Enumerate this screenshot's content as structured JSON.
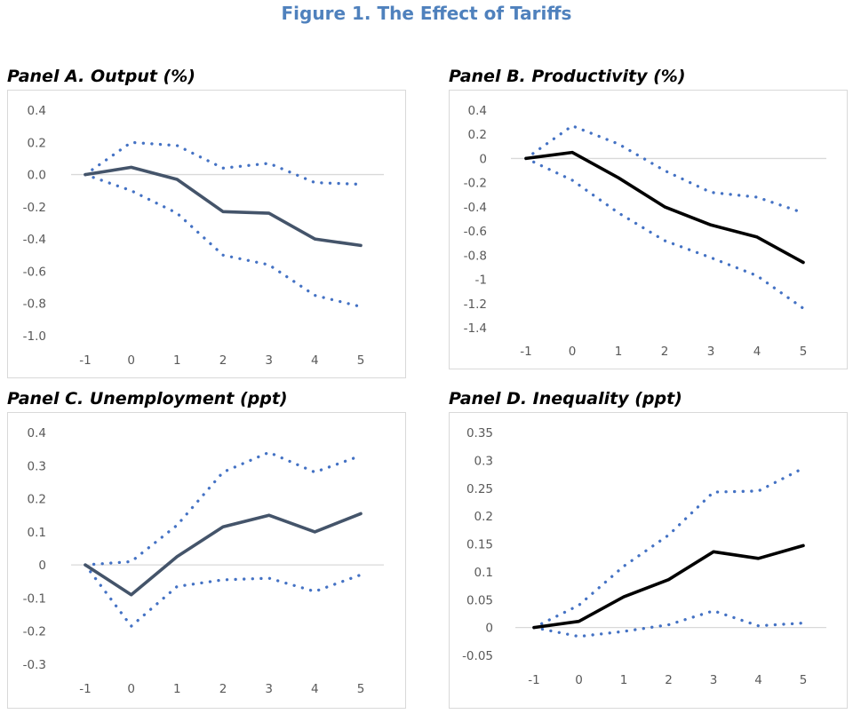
{
  "title": "Figure 1. The Effect of Tariffs",
  "colors": {
    "band": "#4472c4",
    "zero_line": "#d9d9d9",
    "box": "#d9d9d9"
  },
  "chart_data": [
    {
      "type": "line",
      "title": "Panel A. Output (%)",
      "x": [
        -1,
        0,
        1,
        2,
        3,
        4,
        5
      ],
      "x_tick_labels": [
        "-1",
        "0",
        "1",
        "2",
        "3",
        "4",
        "5"
      ],
      "ylim": [
        -1.0,
        0.4
      ],
      "y_ticks": [
        0.4,
        0.2,
        0.0,
        -0.2,
        -0.4,
        -0.6,
        -0.8,
        -1.0
      ],
      "y_tick_labels": [
        "0.4",
        "0.2",
        "0.0",
        "-0.2",
        "-0.4",
        "-0.6",
        "-0.8",
        "-1.0"
      ],
      "series": [
        {
          "name": "estimate",
          "style": "solid",
          "color": "#44546a",
          "values": [
            0,
            0.045,
            -0.03,
            -0.23,
            -0.24,
            -0.4,
            -0.44
          ]
        },
        {
          "name": "upper bound",
          "style": "dotted",
          "color": "#4472c4",
          "values": [
            0,
            0.2,
            0.18,
            0.04,
            0.07,
            -0.05,
            -0.06
          ]
        },
        {
          "name": "lower bound",
          "style": "dotted",
          "color": "#4472c4",
          "values": [
            0,
            -0.1,
            -0.24,
            -0.5,
            -0.56,
            -0.75,
            -0.82
          ]
        }
      ]
    },
    {
      "type": "line",
      "title": "Panel B. Productivity (%)",
      "x": [
        -1,
        0,
        1,
        2,
        3,
        4,
        5
      ],
      "x_tick_labels": [
        "-1",
        "0",
        "1",
        "2",
        "3",
        "4",
        "5"
      ],
      "ylim": [
        -1.4,
        0.4
      ],
      "y_ticks": [
        0.4,
        0.2,
        0,
        -0.2,
        -0.4,
        -0.6,
        -0.8,
        -1.0,
        -1.2,
        -1.4
      ],
      "y_tick_labels": [
        "0.4",
        "0.2",
        "0",
        "-0.2",
        "-0.4",
        "-0.6",
        "-0.8",
        "-1",
        "-1.2",
        "-1.4"
      ],
      "series": [
        {
          "name": "estimate",
          "style": "solid",
          "color": "#000000",
          "values": [
            0,
            0.05,
            -0.16,
            -0.4,
            -0.55,
            -0.65,
            -0.86
          ]
        },
        {
          "name": "upper bound",
          "style": "dotted",
          "color": "#4472c4",
          "values": [
            0,
            0.27,
            0.12,
            -0.1,
            -0.28,
            -0.32,
            -0.45
          ]
        },
        {
          "name": "lower bound",
          "style": "dotted",
          "color": "#4472c4",
          "values": [
            0,
            -0.18,
            -0.45,
            -0.68,
            -0.82,
            -0.97,
            -1.24
          ]
        }
      ]
    },
    {
      "type": "line",
      "title": "Panel C. Unemployment (ppt)",
      "x": [
        -1,
        0,
        1,
        2,
        3,
        4,
        5
      ],
      "x_tick_labels": [
        "-1",
        "0",
        "1",
        "2",
        "3",
        "4",
        "5"
      ],
      "ylim": [
        -0.3,
        0.4
      ],
      "y_ticks": [
        0.4,
        0.3,
        0.2,
        0.1,
        0,
        -0.1,
        -0.2,
        -0.3
      ],
      "y_tick_labels": [
        "0.4",
        "0.3",
        "0.2",
        "0.1",
        "0",
        "-0.1",
        "-0.2",
        "-0.3"
      ],
      "series": [
        {
          "name": "estimate",
          "style": "solid",
          "color": "#44546a",
          "values": [
            0,
            -0.09,
            0.025,
            0.115,
            0.15,
            0.1,
            0.155
          ]
        },
        {
          "name": "upper bound",
          "style": "dotted",
          "color": "#4472c4",
          "values": [
            0,
            0.01,
            0.12,
            0.28,
            0.34,
            0.28,
            0.33
          ]
        },
        {
          "name": "lower bound",
          "style": "dotted",
          "color": "#4472c4",
          "values": [
            0,
            -0.185,
            -0.065,
            -0.045,
            -0.04,
            -0.08,
            -0.03
          ]
        }
      ]
    },
    {
      "type": "line",
      "title": "Panel D. Inequality (ppt)",
      "x": [
        -1,
        0,
        1,
        2,
        3,
        4,
        5
      ],
      "x_tick_labels": [
        "-1",
        "0",
        "1",
        "2",
        "3",
        "4",
        "5"
      ],
      "ylim": [
        -0.05,
        0.35
      ],
      "y_ticks": [
        0.35,
        0.3,
        0.25,
        0.2,
        0.15,
        0.1,
        0.05,
        0,
        -0.05
      ],
      "y_tick_labels": [
        "0.35",
        "0.3",
        "0.25",
        "0.2",
        "0.15",
        "0.1",
        "0.05",
        "0",
        "-0.05"
      ],
      "series": [
        {
          "name": "estimate",
          "style": "solid",
          "color": "#000000",
          "values": [
            0,
            0.011,
            0.055,
            0.086,
            0.136,
            0.124,
            0.147
          ]
        },
        {
          "name": "upper bound",
          "style": "dotted",
          "color": "#4472c4",
          "values": [
            0,
            0.04,
            0.11,
            0.166,
            0.243,
            0.245,
            0.286
          ]
        },
        {
          "name": "lower bound",
          "style": "dotted",
          "color": "#4472c4",
          "values": [
            0,
            -0.016,
            -0.007,
            0.005,
            0.03,
            0.003,
            0.008
          ]
        }
      ]
    }
  ]
}
